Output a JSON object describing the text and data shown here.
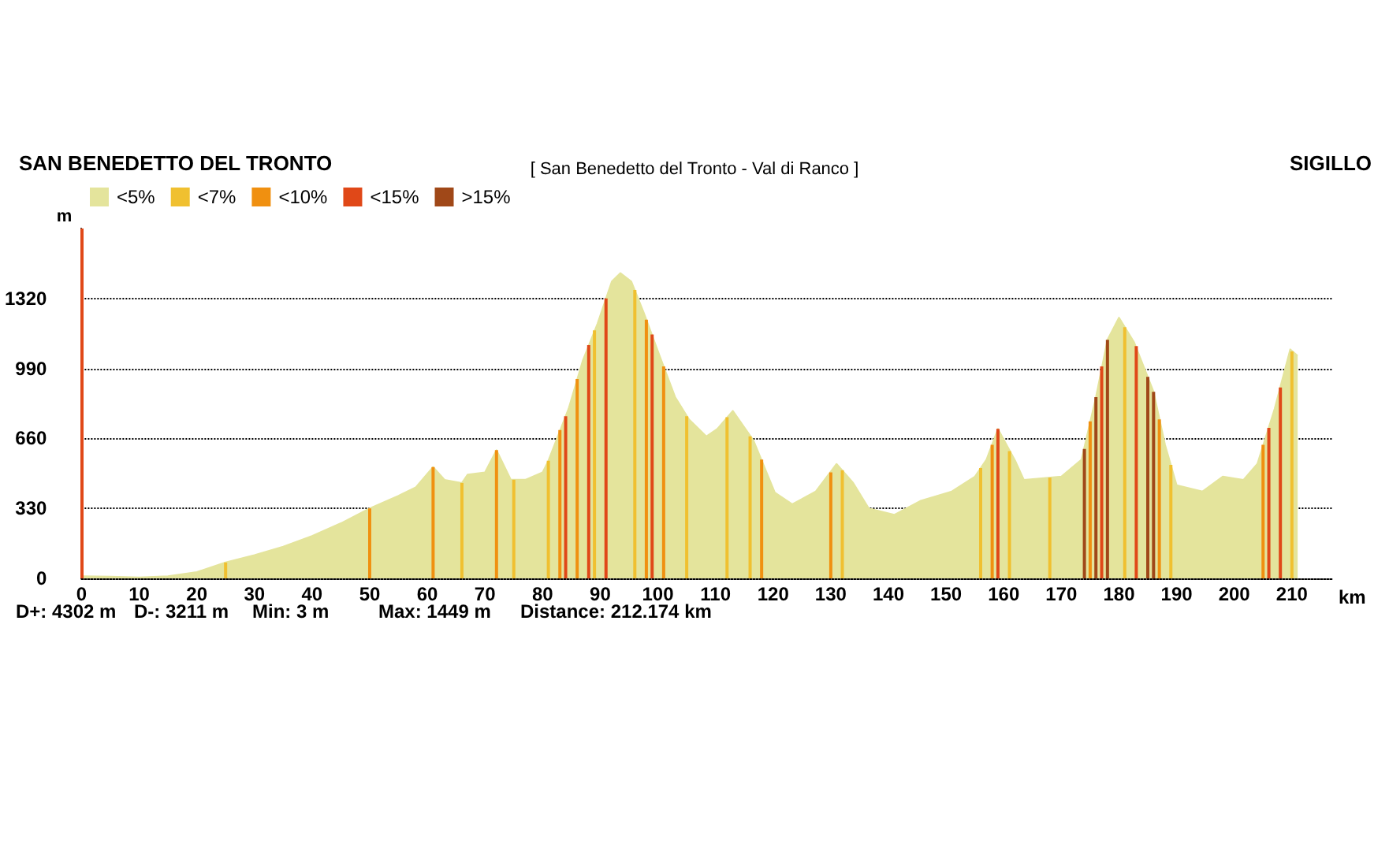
{
  "chart_data": {
    "type": "area",
    "title": "[ San Benedetto del Tronto - Val di Ranco ]",
    "xlabel": "km",
    "ylabel": "m",
    "annotations": [
      "SAN BENEDETTO DEL TRONTO",
      "SIGILLO",
      "D+: 4302 m",
      "D-: 3211 m",
      "Min: 3 m",
      "Max: 1449 m",
      "Distance: 212.174 km"
    ],
    "xlim": [
      0,
      217
    ],
    "xticks": [
      0,
      10,
      20,
      30,
      40,
      50,
      60,
      70,
      80,
      90,
      100,
      110,
      120,
      130,
      140,
      150,
      160,
      170,
      180,
      190,
      200,
      210
    ],
    "ylim": [
      0,
      1650
    ],
    "yticks": [
      0,
      330,
      660,
      990,
      1320
    ],
    "ref_lines": [
      {
        "axis": "x",
        "value": 0,
        "color": "#e04818"
      }
    ],
    "grid": "y",
    "legend": "top left",
    "marker": "none",
    "series": [
      {
        "name": "<5%",
        "color": "#e4e49c",
        "x": [
          0,
          5,
          10,
          15,
          20,
          25,
          30,
          35,
          40,
          45,
          50,
          55,
          58,
          61,
          63,
          66,
          67,
          70,
          72,
          74.5,
          77,
          80,
          81,
          84.5,
          87,
          89.5,
          92,
          93.5,
          95.4,
          97.6,
          100.3,
          103,
          105.4,
          108.4,
          110.3,
          113,
          116.6,
          120.3,
          123.3,
          127.4,
          131,
          133.9,
          136.6,
          141,
          145.5,
          151,
          155,
          157,
          159,
          162,
          163.5,
          170,
          173.5,
          176,
          178,
          180,
          182.6,
          186,
          188,
          190,
          194.5,
          198,
          201.6,
          204,
          207,
          209.7,
          211
        ],
        "values": [
          10,
          8,
          5,
          10,
          30,
          75,
          110,
          150,
          200,
          260,
          330,
          390,
          430,
          525,
          465,
          450,
          490,
          500,
          605,
          465,
          465,
          500,
          555,
          800,
          1030,
          1200,
          1400,
          1440,
          1400,
          1250,
          1050,
          855,
          750,
          670,
          705,
          790,
          650,
          405,
          350,
          410,
          540,
          450,
          330,
          300,
          365,
          410,
          480,
          560,
          705,
          555,
          465,
          480,
          560,
          855,
          1125,
          1230,
          1115,
          880,
          630,
          440,
          410,
          480,
          465,
          540,
          800,
          1080,
          1050
        ]
      },
      {
        "name": "<7%",
        "type": "bar",
        "color": "#f0c030",
        "x": [
          25,
          66,
          75,
          81,
          89,
          96,
          105,
          112,
          116,
          132,
          156,
          161,
          168,
          181,
          189,
          210
        ],
        "values": [
          75,
          450,
          465,
          555,
          1170,
          1360,
          765,
          760,
          670,
          510,
          520,
          600,
          475,
          1185,
          535,
          1070
        ]
      },
      {
        "name": "<10%",
        "type": "bar",
        "color": "#f09010",
        "x": [
          50,
          61,
          72,
          83,
          86,
          98,
          101,
          118,
          130,
          158,
          175,
          187,
          205
        ],
        "values": [
          330,
          525,
          605,
          700,
          940,
          1220,
          1000,
          560,
          500,
          630,
          740,
          750,
          630
        ]
      },
      {
        "name": "<15%",
        "type": "bar",
        "color": "#e04818",
        "x": [
          84,
          88,
          91,
          99,
          159,
          177,
          183,
          206,
          208
        ],
        "values": [
          765,
          1100,
          1320,
          1150,
          705,
          1000,
          1095,
          710,
          900
        ]
      },
      {
        "name": ">15%",
        "type": "bar",
        "color": "#a04818",
        "x": [
          174,
          176,
          178,
          185,
          186
        ],
        "values": [
          610,
          855,
          1125,
          950,
          880
        ]
      }
    ]
  }
}
